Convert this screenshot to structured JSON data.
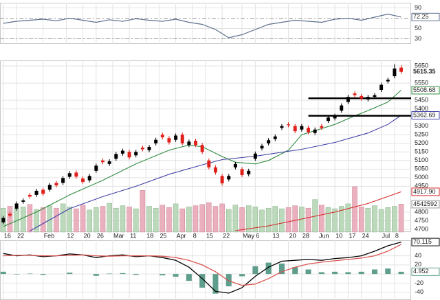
{
  "chart_data": [
    {
      "type": "line",
      "xlim": [
        -1,
        123
      ],
      "x": [
        0,
        4,
        8,
        12,
        16,
        20,
        24,
        28,
        32,
        36,
        40,
        44,
        48,
        52,
        56,
        60,
        64,
        68,
        72,
        76,
        80,
        84,
        88,
        92,
        96,
        100,
        104,
        108,
        112,
        116,
        120
      ],
      "series": [
        {
          "color": "#5b6f8c",
          "values": [
            60,
            64,
            66,
            68,
            65,
            70,
            66,
            62,
            67,
            64,
            69,
            66,
            64,
            68,
            62,
            58,
            48,
            32,
            38,
            48,
            58,
            62,
            66,
            64,
            62,
            68,
            70,
            66,
            72,
            78,
            72.25
          ]
        }
      ],
      "ylim": [
        20,
        100
      ],
      "yticks": [
        90,
        50,
        30
      ],
      "ref_lines": [
        70,
        30
      ],
      "grid": true
    },
    {
      "type": "candlestick",
      "xlim": [
        -1,
        123
      ],
      "xticks": [
        {
          "value": 0,
          "label": "16"
        },
        {
          "value": 4,
          "label": "22"
        },
        {
          "value": 12,
          "label": "Feb"
        },
        {
          "value": 19,
          "label": "12"
        },
        {
          "value": 24,
          "label": "20"
        },
        {
          "value": 28,
          "label": "26"
        },
        {
          "value": 33,
          "label": "Mar"
        },
        {
          "value": 38,
          "label": "11"
        },
        {
          "value": 43,
          "label": "18"
        },
        {
          "value": 47,
          "label": "25"
        },
        {
          "value": 52,
          "label": "Apr"
        },
        {
          "value": 57,
          "label": "8"
        },
        {
          "value": 61,
          "label": "15"
        },
        {
          "value": 66,
          "label": "22"
        },
        {
          "value": 72,
          "label": "May"
        },
        {
          "value": 76,
          "label": "6"
        },
        {
          "value": 81,
          "label": "13"
        },
        {
          "value": 86,
          "label": "20"
        },
        {
          "value": 90,
          "label": "28"
        },
        {
          "value": 95,
          "label": "Jun"
        },
        {
          "value": 100,
          "label": "10"
        },
        {
          "value": 104,
          "label": "17"
        },
        {
          "value": 108,
          "label": "24"
        },
        {
          "value": 114,
          "label": "Jul"
        },
        {
          "value": 118,
          "label": "8"
        }
      ],
      "ylim": [
        4684,
        5682
      ],
      "yticks": [
        5650,
        5550,
        5450,
        5400,
        5300,
        5250,
        5200,
        5150,
        5100,
        5050,
        5000,
        4950,
        4800,
        4750,
        4700
      ],
      "grid": true,
      "up_color": "#000000",
      "down_color": "#e0201b",
      "x": [
        0,
        2,
        4,
        6,
        8,
        10,
        12,
        14,
        16,
        18,
        20,
        22,
        24,
        26,
        28,
        30,
        32,
        34,
        36,
        38,
        40,
        42,
        44,
        46,
        48,
        50,
        52,
        54,
        56,
        58,
        60,
        62,
        64,
        66,
        68,
        70,
        72,
        74,
        76,
        78,
        80,
        82,
        84,
        86,
        88,
        90,
        92,
        94,
        96,
        98,
        100,
        102,
        104,
        106,
        108,
        110,
        112,
        114,
        116,
        118,
        120
      ],
      "open": [
        4740,
        4790,
        4820,
        4860,
        4900,
        4900,
        4930,
        4930,
        4970,
        4970,
        5005,
        5030,
        4995,
        4985,
        5040,
        5100,
        5080,
        5110,
        5140,
        5150,
        5130,
        5175,
        5160,
        5200,
        5250,
        5230,
        5220,
        5250,
        5190,
        5215,
        5190,
        5100,
        5060,
        5010,
        4990,
        5060,
        5050,
        5020,
        5110,
        5170,
        5200,
        5225,
        5290,
        5310,
        5300,
        5280,
        5290,
        5260,
        5300,
        5330,
        5345,
        5390,
        5440,
        5490,
        5475,
        5455,
        5470,
        5510,
        5560,
        5590,
        5640
      ],
      "high": [
        4778,
        4802,
        4862,
        4880,
        4912,
        4936,
        4942,
        4970,
        4982,
        5010,
        5038,
        5042,
        5007,
        5022,
        5082,
        5112,
        5107,
        5150,
        5169,
        5162,
        5162,
        5187,
        5191,
        5232,
        5262,
        5242,
        5257,
        5262,
        5222,
        5227,
        5202,
        5112,
        5072,
        5022,
        5022,
        5092,
        5062,
        5052,
        5152,
        5197,
        5230,
        5252,
        5312,
        5322,
        5312,
        5312,
        5302,
        5292,
        5312,
        5362,
        5372,
        5432,
        5482,
        5502,
        5487,
        5482,
        5492,
        5552,
        5582,
        5660,
        5655
      ],
      "low": [
        4728,
        4768,
        4808,
        4848,
        4878,
        4888,
        4894,
        4918,
        4943,
        4958,
        4993,
        4994,
        4963,
        4973,
        5028,
        5078,
        5068,
        5098,
        5128,
        5106,
        5118,
        5153,
        5148,
        5188,
        5223,
        5193,
        5208,
        5188,
        5178,
        5178,
        5138,
        5048,
        5018,
        4953,
        4978,
        5048,
        5003,
        5008,
        5098,
        5158,
        5188,
        5213,
        5278,
        5293,
        5258,
        5268,
        5253,
        5248,
        5278,
        5318,
        5333,
        5378,
        5428,
        5468,
        5448,
        5443,
        5458,
        5498,
        5548,
        5578,
        5603
      ],
      "close": [
        4766,
        4780,
        4850,
        4868,
        4890,
        4924,
        4906,
        4958,
        4955,
        4998,
        5026,
        5006,
        4975,
        5010,
        5070,
        5090,
        5095,
        5138,
        5157,
        5118,
        5150,
        5165,
        5179,
        5220,
        5235,
        5205,
        5245,
        5200,
        5210,
        5190,
        5150,
        5060,
        5030,
        4967,
        5010,
        5080,
        5015,
        5040,
        5140,
        5185,
        5218,
        5240,
        5300,
        5305,
        5270,
        5300,
        5265,
        5280,
        5290,
        5350,
        5360,
        5420,
        5470,
        5480,
        5460,
        5470,
        5480,
        5540,
        5570,
        5635,
        5615.35
      ],
      "lines": [
        {
          "color": "#2e8b3e",
          "x": [
            0,
            10,
            20,
            30,
            40,
            50,
            56,
            60,
            66,
            70,
            76,
            80,
            86,
            90,
            96,
            100,
            106,
            110,
            116,
            120
          ],
          "values": [
            4716,
            4800,
            4900,
            4985,
            5080,
            5160,
            5190,
            5180,
            5123,
            5090,
            5080,
            5100,
            5160,
            5250,
            5285,
            5310,
            5360,
            5390,
            5440,
            5508.68
          ]
        },
        {
          "color": "#3f3fa6",
          "x": [
            8,
            20,
            30,
            40,
            50,
            60,
            66,
            76,
            90,
            100,
            110,
            116,
            120
          ],
          "values": [
            4690,
            4820,
            4890,
            4950,
            5020,
            5075,
            5105,
            5125,
            5165,
            5205,
            5260,
            5310,
            5362.69
          ]
        },
        {
          "color": "#d62728",
          "x": [
            70,
            80,
            90,
            100,
            110,
            120
          ],
          "values": [
            4692,
            4720,
            4760,
            4800,
            4850,
            4917.9
          ],
          "last_label": "4917.90"
        }
      ],
      "support_lines": [
        {
          "y": 5462,
          "x": [
            92,
            123
          ]
        },
        {
          "y": 5360,
          "x": [
            92,
            123
          ]
        }
      ],
      "volume": {
        "ylim": [
          0,
          28000000
        ],
        "up_color": "#bcd9bc",
        "down_color": "#eab0bd",
        "values": [
          3900000,
          4200000,
          3800000,
          4100000,
          4500000,
          3700000,
          4000000,
          4300000,
          3900000,
          4600000,
          4100000,
          3800000,
          4400000,
          3600000,
          4000000,
          4200000,
          4700000,
          3900000,
          4300000,
          4100000,
          3800000,
          6800000,
          4200000,
          3900000,
          4400000,
          4000000,
          4600000,
          3800000,
          4100000,
          4300000,
          4500000,
          4800000,
          4200000,
          4600000,
          3700000,
          4400000,
          4000000,
          4300000,
          4100000,
          3600000,
          3900000,
          4200000,
          3800000,
          4000000,
          4300000,
          4100000,
          3900000,
          5300000,
          4400000,
          4000000,
          3800000,
          4200000,
          4600000,
          7400000,
          4100000,
          3900000,
          4300000,
          3700000,
          4000000,
          4200000,
          4542592
        ]
      }
    },
    {
      "type": "macd",
      "xlim": [
        -1,
        123
      ],
      "x": [
        0,
        4,
        8,
        12,
        16,
        20,
        24,
        28,
        32,
        36,
        40,
        44,
        48,
        52,
        56,
        60,
        64,
        68,
        72,
        76,
        80,
        84,
        88,
        92,
        96,
        100,
        104,
        108,
        112,
        116,
        120
      ],
      "series": [
        {
          "color": "#000000",
          "values": [
            45,
            40,
            42,
            38,
            40,
            44,
            42,
            36,
            40,
            42,
            38,
            40,
            36,
            30,
            15,
            -10,
            -38,
            -42,
            -30,
            -5,
            15,
            28,
            30,
            32,
            30,
            34,
            36,
            40,
            50,
            62,
            70.115
          ]
        },
        {
          "color": "#d9534f",
          "values": [
            40,
            41,
            41,
            40,
            40,
            41,
            42,
            40,
            39,
            40,
            40,
            40,
            39,
            36,
            30,
            20,
            5,
            -15,
            -25,
            -22,
            -10,
            5,
            15,
            22,
            26,
            29,
            32,
            35,
            40,
            50,
            65.163
          ]
        }
      ],
      "histogram": {
        "color": "#5f9e8c",
        "values": [
          5,
          -1,
          1,
          -2,
          0,
          3,
          0,
          -4,
          1,
          2,
          -2,
          0,
          -3,
          -6,
          -15,
          -30,
          -43,
          -27,
          -5,
          17,
          25,
          23,
          15,
          10,
          4,
          5,
          4,
          5,
          10,
          12,
          4.952
        ]
      },
      "ylim": [
        -57,
        74
      ],
      "yticks": [
        40,
        20,
        0,
        -20,
        -40
      ],
      "grid": true
    }
  ]
}
